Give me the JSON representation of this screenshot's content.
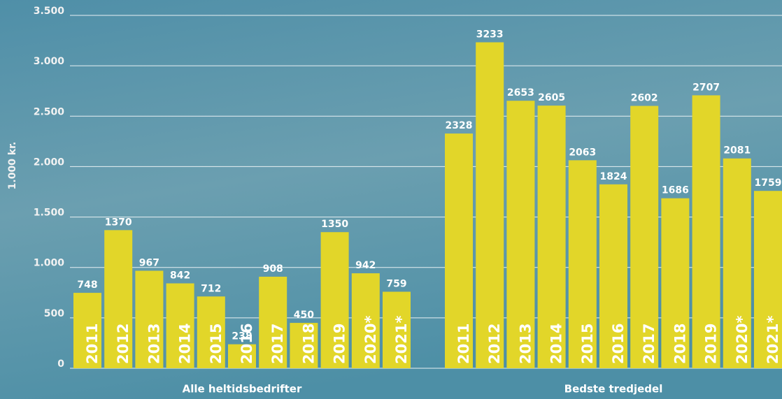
{
  "chart_data": {
    "type": "bar",
    "y_label": "1.000 kr.",
    "categories": [
      "2011",
      "2012",
      "2013",
      "2014",
      "2015",
      "2016",
      "2017",
      "2018",
      "2019",
      "2020*",
      "2021*"
    ],
    "groups": [
      {
        "name": "Alle heltidsbedrifter",
        "values": [
          748,
          1370,
          967,
          842,
          712,
          238,
          908,
          450,
          1350,
          942,
          759
        ]
      },
      {
        "name": "Bedste tredjedel",
        "values": [
          2328,
          3233,
          2653,
          2605,
          2063,
          1824,
          2602,
          1686,
          2707,
          2081,
          1759
        ]
      }
    ],
    "color": "#e2d629",
    "ylim": [
      0,
      3500
    ],
    "yticks": [
      0,
      500,
      {
        "value": 1000,
        "label": "1.000"
      },
      {
        "value": 1500,
        "label": "1.500"
      },
      {
        "value": 2000,
        "label": "2.000"
      },
      {
        "value": 2500,
        "label": "2.500"
      },
      {
        "value": 3000,
        "label": "3.000"
      },
      {
        "value": 3500,
        "label": "3.500"
      }
    ],
    "grid": true
  }
}
